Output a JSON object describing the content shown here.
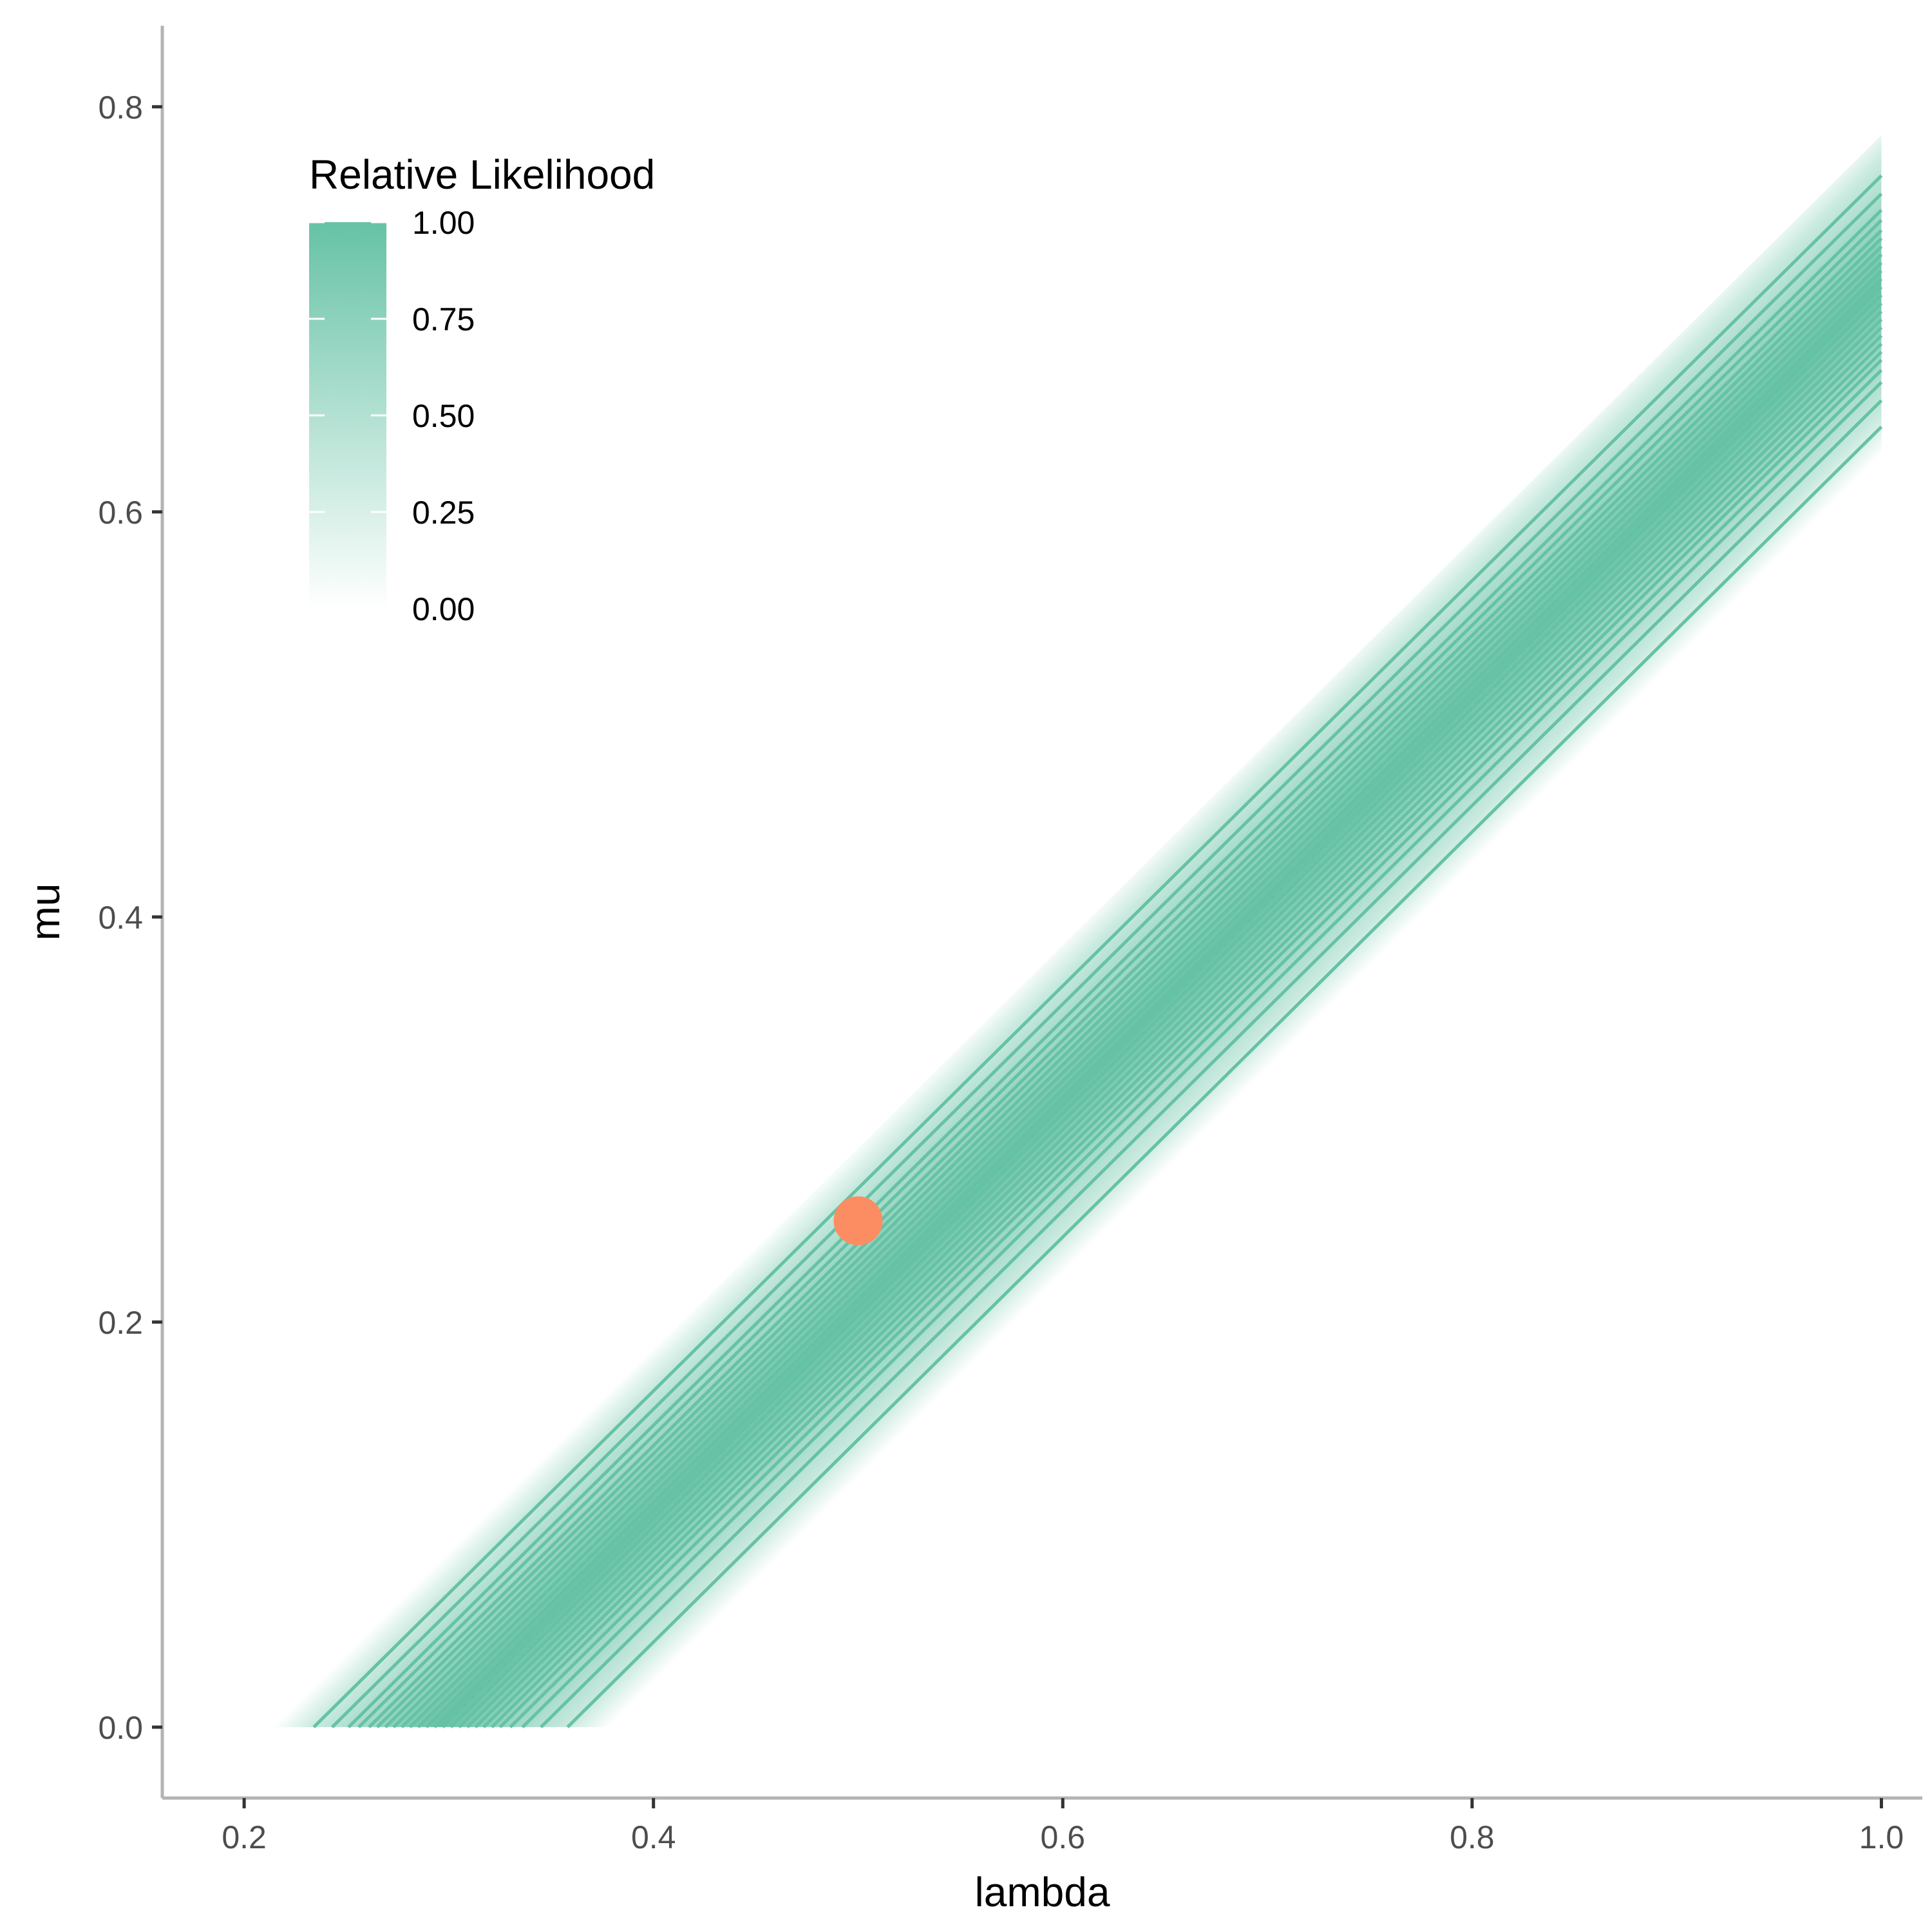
{
  "chart_data": {
    "type": "contour",
    "xlabel": "lambda",
    "ylabel": "mu",
    "xlim": [
      0.16,
      1.02
    ],
    "ylim": [
      -0.035,
      0.84
    ],
    "x_ticks": [
      "0.2",
      "0.4",
      "0.6",
      "0.8",
      "1.0"
    ],
    "y_ticks": [
      "0.0",
      "0.2",
      "0.4",
      "0.6",
      "0.8"
    ],
    "grid": false,
    "contours": {
      "description_relation": "mu = lambda - offset, clipped at mu >= 0, lambda <= 1",
      "offsets": [
        0.234,
        0.243,
        0.251,
        0.256,
        0.261,
        0.265,
        0.269,
        0.273,
        0.277,
        0.281,
        0.285,
        0.289,
        0.293,
        0.297,
        0.301,
        0.305,
        0.309,
        0.313,
        0.317,
        0.321,
        0.325,
        0.33,
        0.336,
        0.345,
        0.358
      ],
      "peak_offset": 0.295,
      "color": "#66c2a5"
    },
    "points": [
      {
        "x": 0.5,
        "y": 0.25,
        "color": "#fc8d62"
      }
    ],
    "legend": {
      "title": "Relative Likelihood",
      "placement": "top-left",
      "labels": [
        "1.00",
        "0.75",
        "0.50",
        "0.25",
        "0.00"
      ],
      "values": [
        1.0,
        0.75,
        0.5,
        0.25,
        0.0
      ],
      "color_high": "#66c2a5",
      "color_low": "#ffffff"
    }
  }
}
